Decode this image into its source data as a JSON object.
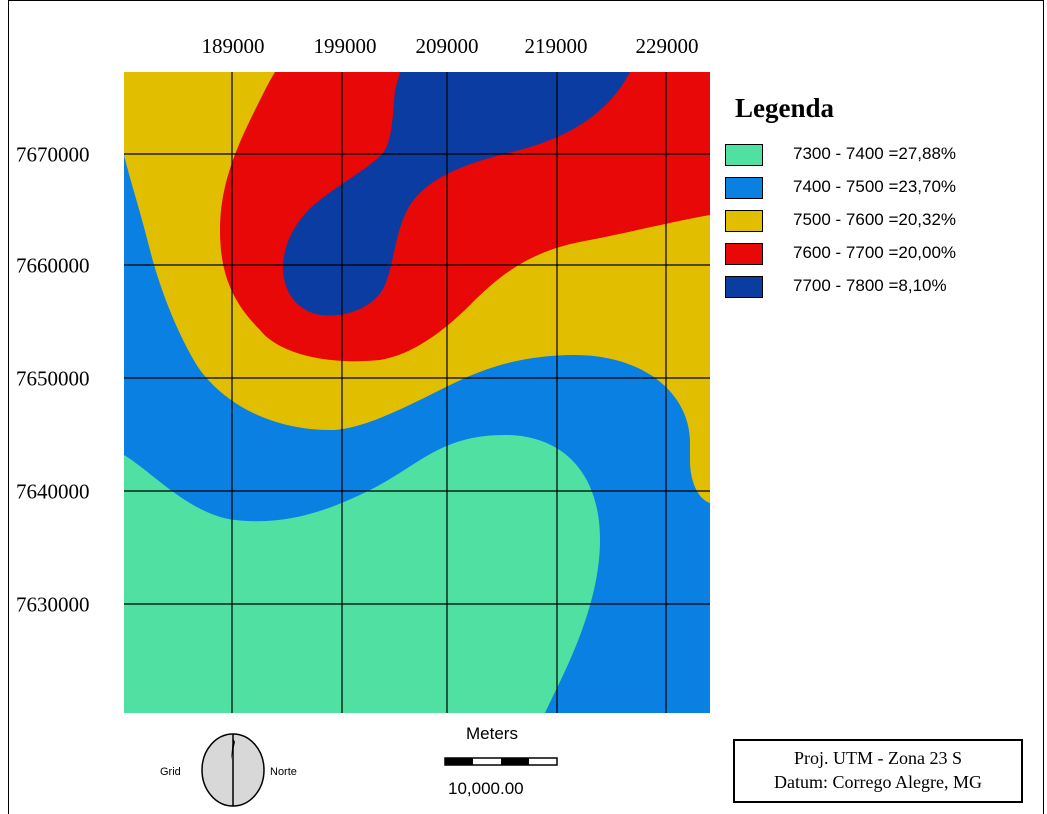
{
  "map": {
    "x_ticks": [
      "189000",
      "199000",
      "209000",
      "219000",
      "229000"
    ],
    "y_ticks": [
      "7670000",
      "7660000",
      "7650000",
      "7640000",
      "7630000"
    ],
    "zone_colors": {
      "z7300": "#50e0a2",
      "z7400": "#0a80e2",
      "z7500": "#e2be00",
      "z7600": "#e80808",
      "z7700": "#0a3ca2"
    },
    "grid_color": "#000000"
  },
  "legend": {
    "title": "Legenda",
    "items": [
      {
        "label": "7300 - 7400  =27,88%",
        "color": "#50e0a2"
      },
      {
        "label": "7400 - 7500  =23,70%",
        "color": "#0a80e2"
      },
      {
        "label": "7500 - 7600  =20,32%",
        "color": "#e2be00"
      },
      {
        "label": "7600 - 7700  =20,00%",
        "color": "#e80808"
      },
      {
        "label": "7700 - 7800  =8,10%",
        "color": "#0a3ca2"
      }
    ]
  },
  "compass": {
    "left_word": "Grid",
    "right_word": "Norte",
    "icon": "north-arrow-icon"
  },
  "scalebar": {
    "title": "Meters",
    "value": "10,000.00"
  },
  "projection": {
    "line1": "Proj. UTM - Zona 23 S",
    "line2": "Datum: Corrego Alegre, MG"
  }
}
